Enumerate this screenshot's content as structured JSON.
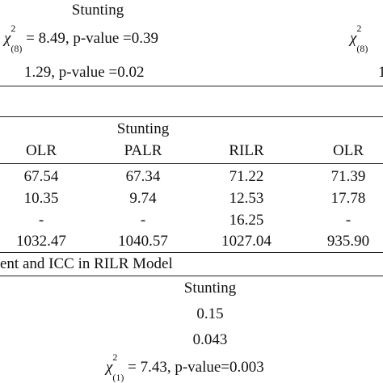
{
  "top_block": {
    "heading": "Stunting",
    "chi_symbol": "χ",
    "chi_sup": "2",
    "chi_sub": "(8)",
    "chi_rest": " = 8.49, p-value =0.39",
    "chi_right_symbol": "χ",
    "chi_right_sup": "2",
    "chi_right_sub": "(8)",
    "line2": "1.29, p-value =0.02",
    "line2_right_fragment": "1"
  },
  "table": {
    "group_label": "Stunting",
    "columns": [
      "OLR",
      "PALR",
      "RILR",
      "OLR"
    ],
    "rows": [
      [
        "67.54",
        "67.34",
        "71.22",
        "71.39"
      ],
      [
        "10.35",
        "9.74",
        "12.53",
        "17.78"
      ],
      [
        "-",
        "-",
        "16.25",
        "-"
      ],
      [
        "1032.47",
        "1040.57",
        "1027.04",
        "935.90"
      ]
    ]
  },
  "bottom_block": {
    "caption": "ent and ICC in RILR Model",
    "heading": "Stunting",
    "values": [
      "0.15",
      "0.043"
    ],
    "chi_symbol": "χ",
    "chi_sup": "2",
    "chi_sub": "(1)",
    "chi_rest": " = 7.43, p-value=0.003"
  }
}
